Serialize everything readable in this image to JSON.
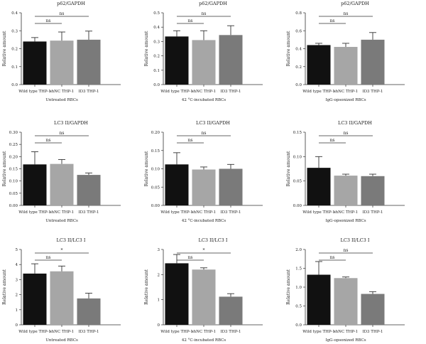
{
  "chart_data": [
    {
      "type": "bar",
      "title": "p62/GAPDH",
      "xlabel": "Untreated RBCs",
      "ylabel": "Relative amount",
      "categories": [
        "Wild type THP-1",
        "shNC THP-1",
        "ID3 THP-1"
      ],
      "values": [
        0.24,
        0.245,
        0.25
      ],
      "errors": [
        0.022,
        0.048,
        0.048
      ],
      "ylim": [
        0,
        0.4
      ],
      "yticks": [
        "0.0",
        "0.1",
        "0.2",
        "0.3",
        "0.4"
      ],
      "bar_colors": [
        "#111111",
        "#a6a6a6",
        "#7a7a7a"
      ],
      "annotations": [
        {
          "from": 0,
          "to": 1,
          "label": "ns"
        },
        {
          "from": 0,
          "to": 2,
          "label": "ns"
        }
      ]
    },
    {
      "type": "bar",
      "title": "p62/GAPDH",
      "xlabel": "42 °C-incubated RBCs",
      "ylabel": "Relative amount",
      "categories": [
        "Wild type THP-1",
        "shNC THP-1",
        "ID3 THP-1"
      ],
      "values": [
        0.335,
        0.31,
        0.345
      ],
      "errors": [
        0.04,
        0.065,
        0.065
      ],
      "ylim": [
        0,
        0.5
      ],
      "yticks": [
        "0.0",
        "0.1",
        "0.2",
        "0.3",
        "0.4",
        "0.5"
      ],
      "bar_colors": [
        "#111111",
        "#a6a6a6",
        "#7a7a7a"
      ],
      "annotations": [
        {
          "from": 0,
          "to": 1,
          "label": "ns"
        },
        {
          "from": 0,
          "to": 2,
          "label": "ns"
        }
      ]
    },
    {
      "type": "bar",
      "title": "p62/GAPDH",
      "xlabel": "IgG-opsonized RBCs",
      "ylabel": "Relative amount",
      "categories": [
        "Wild type THP-1",
        "shNC THP-1",
        "ID3 THP-1"
      ],
      "values": [
        0.44,
        0.42,
        0.5
      ],
      "errors": [
        0.02,
        0.04,
        0.08
      ],
      "ylim": [
        0,
        0.8
      ],
      "yticks": [
        "0.0",
        "0.2",
        "0.4",
        "0.6",
        "0.8"
      ],
      "bar_colors": [
        "#111111",
        "#a6a6a6",
        "#7a7a7a"
      ],
      "annotations": [
        {
          "from": 0,
          "to": 1,
          "label": "ns"
        },
        {
          "from": 0,
          "to": 2,
          "label": "ns"
        }
      ]
    },
    {
      "type": "bar",
      "title": "LC3 II/GAPDH",
      "xlabel": "Untreated RBCs",
      "ylabel": "Relative amount",
      "categories": [
        "Wild type THP-1",
        "shNC THP-1",
        "ID3 THP-1"
      ],
      "values": [
        0.168,
        0.17,
        0.125
      ],
      "errors": [
        0.052,
        0.018,
        0.008
      ],
      "ylim": [
        0,
        0.3
      ],
      "yticks": [
        "0.00",
        "0.05",
        "0.10",
        "0.15",
        "0.20",
        "0.25",
        "0.30"
      ],
      "bar_colors": [
        "#111111",
        "#a6a6a6",
        "#7a7a7a"
      ],
      "annotations": [
        {
          "from": 0,
          "to": 1,
          "label": "ns"
        },
        {
          "from": 0,
          "to": 2,
          "label": "ns"
        }
      ]
    },
    {
      "type": "bar",
      "title": "LC3 II/GAPDH",
      "xlabel": "42 °C-incubated RBCs",
      "ylabel": "Relative amount",
      "categories": [
        "Wild type THP-1",
        "shNC THP-1",
        "ID3 THP-1"
      ],
      "values": [
        0.112,
        0.098,
        0.1
      ],
      "errors": [
        0.032,
        0.007,
        0.012
      ],
      "ylim": [
        0,
        0.2
      ],
      "yticks": [
        "0.00",
        "0.05",
        "0.10",
        "0.15",
        "0.20"
      ],
      "bar_colors": [
        "#111111",
        "#a6a6a6",
        "#7a7a7a"
      ],
      "annotations": [
        {
          "from": 0,
          "to": 1,
          "label": "ns"
        },
        {
          "from": 0,
          "to": 2,
          "label": "ns"
        }
      ]
    },
    {
      "type": "bar",
      "title": "LC3 II/GAPDH",
      "xlabel": "IgG-opsonized RBCs",
      "ylabel": "Relative amount",
      "categories": [
        "Wild type THP-1",
        "shNC THP-1",
        "ID3 THP-1"
      ],
      "values": [
        0.077,
        0.061,
        0.06
      ],
      "errors": [
        0.023,
        0.003,
        0.004
      ],
      "ylim": [
        0,
        0.15
      ],
      "yticks": [
        "0.00",
        "0.05",
        "0.10",
        "0.15"
      ],
      "bar_colors": [
        "#111111",
        "#a6a6a6",
        "#7a7a7a"
      ],
      "annotations": [
        {
          "from": 0,
          "to": 1,
          "label": "ns"
        },
        {
          "from": 0,
          "to": 2,
          "label": "ns"
        }
      ]
    },
    {
      "type": "bar",
      "title": "LC3 II/LC3 I",
      "xlabel": "Untreated RBCs",
      "ylabel": "Relative amount",
      "categories": [
        "Wild type THP-1",
        "shNC THP-1",
        "ID3 THP-1"
      ],
      "values": [
        3.4,
        3.55,
        1.75
      ],
      "errors": [
        0.65,
        0.35,
        0.35
      ],
      "ylim": [
        0,
        5
      ],
      "yticks": [
        "0",
        "1",
        "2",
        "3",
        "4",
        "5"
      ],
      "bar_colors": [
        "#111111",
        "#a6a6a6",
        "#7a7a7a"
      ],
      "annotations": [
        {
          "from": 0,
          "to": 1,
          "label": "ns"
        },
        {
          "from": 0,
          "to": 2,
          "label": "*"
        }
      ]
    },
    {
      "type": "bar",
      "title": "LC3 II/LC3 I",
      "xlabel": "42 °C-incubated RBCs",
      "ylabel": "Relative amount",
      "categories": [
        "Wild type THP-1",
        "shNC THP-1",
        "ID3 THP-1"
      ],
      "values": [
        2.45,
        2.2,
        1.12
      ],
      "errors": [
        0.35,
        0.07,
        0.12
      ],
      "ylim": [
        0,
        3
      ],
      "yticks": [
        "0",
        "1",
        "2",
        "3"
      ],
      "bar_colors": [
        "#111111",
        "#a6a6a6",
        "#7a7a7a"
      ],
      "annotations": [
        {
          "from": 0,
          "to": 1,
          "label": "ns"
        },
        {
          "from": 0,
          "to": 2,
          "label": "*"
        }
      ]
    },
    {
      "type": "bar",
      "title": "LC3 II/LC3 I",
      "xlabel": "IgG-opsonized RBCs",
      "ylabel": "Relative amount",
      "categories": [
        "Wild type THP-1",
        "shNC THP-1",
        "ID3 THP-1"
      ],
      "values": [
        1.33,
        1.24,
        0.82
      ],
      "errors": [
        0.35,
        0.03,
        0.06
      ],
      "ylim": [
        0,
        2
      ],
      "yticks": [
        "0.0",
        "0.5",
        "1.0",
        "1.5",
        "2.0"
      ],
      "bar_colors": [
        "#111111",
        "#a6a6a6",
        "#7a7a7a"
      ],
      "annotations": [
        {
          "from": 0,
          "to": 1,
          "label": "ns"
        },
        {
          "from": 0,
          "to": 2,
          "label": "ns"
        }
      ]
    }
  ]
}
